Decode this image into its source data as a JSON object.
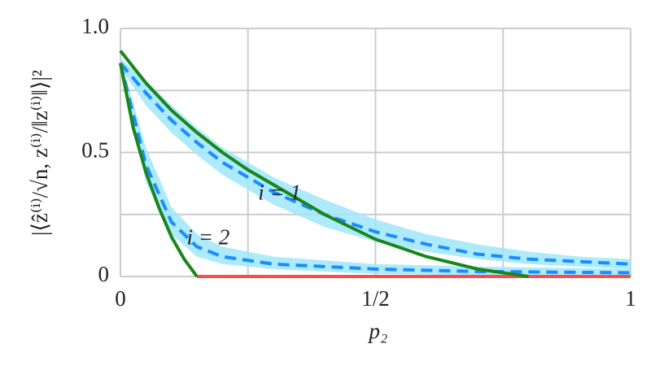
{
  "chart_data": {
    "type": "line",
    "ylabel": "|⟨ẑ⁽ⁱ⁾/√n, z⁽ⁱ⁾/‖z⁽ⁱ⁾‖⟩|²",
    "xlabel": "p₂",
    "xlim": [
      0,
      1
    ],
    "ylim": [
      0,
      1
    ],
    "xticks": [
      0,
      {
        "value": 0.25,
        "label": null
      },
      {
        "value": 0.5,
        "label": "1/2"
      },
      {
        "value": 0.75,
        "label": null
      },
      1
    ],
    "yticks": [
      0,
      {
        "value": 0.25,
        "label": null
      },
      0.5,
      {
        "value": 0.75,
        "label": null
      },
      {
        "value": 1,
        "label": "1.0"
      }
    ],
    "grid": true,
    "annotations": [
      "i = 1",
      "i = 2"
    ],
    "bands": [
      {
        "color": "#9ee6fb",
        "x": [
          0,
          0.05,
          0.1,
          0.15,
          0.2,
          0.25,
          0.3,
          0.4,
          0.5,
          0.6,
          0.7,
          0.8,
          0.9,
          1
        ],
        "lower": [
          0.84,
          0.69,
          0.58,
          0.49,
          0.41,
          0.35,
          0.29,
          0.2,
          0.14,
          0.1,
          0.07,
          0.05,
          0.04,
          0.03
        ],
        "upper": [
          0.88,
          0.79,
          0.69,
          0.6,
          0.52,
          0.46,
          0.4,
          0.31,
          0.23,
          0.17,
          0.13,
          0.1,
          0.08,
          0.07
        ]
      },
      {
        "color": "#9ee6fb",
        "x": [
          0,
          0.05,
          0.1,
          0.15,
          0.2,
          0.3,
          0.5,
          0.7,
          1
        ],
        "lower": [
          0.84,
          0.38,
          0.17,
          0.08,
          0.05,
          0.03,
          0.01,
          0.005,
          0.003
        ],
        "upper": [
          0.88,
          0.52,
          0.28,
          0.17,
          0.12,
          0.08,
          0.05,
          0.04,
          0.03
        ]
      }
    ],
    "series": [
      {
        "color": "#1a8cff",
        "dash": true,
        "x": [
          0,
          0.05,
          0.1,
          0.15,
          0.2,
          0.25,
          0.3,
          0.4,
          0.5,
          0.6,
          0.7,
          0.8,
          0.9,
          1
        ],
        "values": [
          0.86,
          0.74,
          0.63,
          0.54,
          0.46,
          0.4,
          0.34,
          0.25,
          0.18,
          0.13,
          0.09,
          0.07,
          0.06,
          0.05
        ]
      },
      {
        "color": "#1a8cff",
        "dash": true,
        "x": [
          0,
          0.05,
          0.1,
          0.15,
          0.2,
          0.3,
          0.5,
          0.7,
          1
        ],
        "values": [
          0.86,
          0.45,
          0.22,
          0.12,
          0.08,
          0.05,
          0.03,
          0.02,
          0.015
        ]
      },
      {
        "color": "#ff4a4a",
        "dash": false,
        "x": [
          0.15,
          1
        ],
        "values": [
          0,
          0
        ]
      },
      {
        "color": "#1a861a",
        "dash": false,
        "x": [
          0,
          0.05,
          0.1,
          0.15,
          0.2,
          0.25,
          0.3,
          0.4,
          0.5,
          0.6,
          0.7,
          0.8
        ],
        "values": [
          0.91,
          0.78,
          0.67,
          0.58,
          0.5,
          0.43,
          0.37,
          0.25,
          0.15,
          0.08,
          0.03,
          0
        ]
      },
      {
        "color": "#1a861a",
        "dash": false,
        "x": [
          0,
          0.025,
          0.05,
          0.075,
          0.1,
          0.125,
          0.15
        ],
        "values": [
          0.86,
          0.6,
          0.42,
          0.28,
          0.16,
          0.07,
          0
        ]
      }
    ]
  }
}
